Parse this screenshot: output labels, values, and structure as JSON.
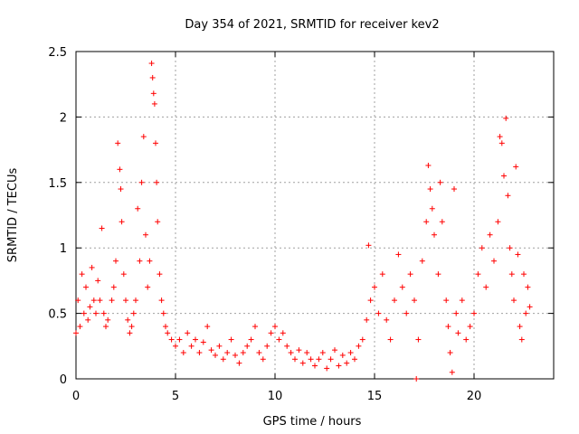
{
  "chart_data": {
    "type": "scatter",
    "title": "Day 354 of 2021, SRMTID for receiver kev2",
    "xlabel": "GPS time / hours",
    "ylabel": "SRMTID / TECUs",
    "xlim": [
      0,
      24
    ],
    "ylim": [
      0,
      2.5
    ],
    "xticks": [
      0,
      5,
      10,
      15,
      20
    ],
    "xtick_labels": [
      "0",
      "5",
      "10",
      "15",
      "20"
    ],
    "yticks": [
      0,
      0.5,
      1,
      1.5,
      2,
      2.5
    ],
    "ytick_labels": [
      "0",
      "0.5",
      "1",
      "1.5",
      "2",
      "2.5"
    ],
    "grid": true,
    "marker": "+",
    "color": "#ff0000",
    "series": [
      {
        "name": "SRMTID",
        "points": [
          [
            0.0,
            0.35
          ],
          [
            0.1,
            0.6
          ],
          [
            0.2,
            0.4
          ],
          [
            0.3,
            0.8
          ],
          [
            0.4,
            0.5
          ],
          [
            0.5,
            0.7
          ],
          [
            0.6,
            0.45
          ],
          [
            0.7,
            0.55
          ],
          [
            0.8,
            0.85
          ],
          [
            0.9,
            0.6
          ],
          [
            1.0,
            0.5
          ],
          [
            1.1,
            0.75
          ],
          [
            1.2,
            0.6
          ],
          [
            1.3,
            1.15
          ],
          [
            1.4,
            0.5
          ],
          [
            1.5,
            0.4
          ],
          [
            1.6,
            0.45
          ],
          [
            1.8,
            0.6
          ],
          [
            1.9,
            0.7
          ],
          [
            2.0,
            0.9
          ],
          [
            2.1,
            1.8
          ],
          [
            2.2,
            1.6
          ],
          [
            2.25,
            1.45
          ],
          [
            2.3,
            1.2
          ],
          [
            2.4,
            0.8
          ],
          [
            2.5,
            0.6
          ],
          [
            2.6,
            0.45
          ],
          [
            2.7,
            0.35
          ],
          [
            2.8,
            0.4
          ],
          [
            2.9,
            0.5
          ],
          [
            3.0,
            0.6
          ],
          [
            3.1,
            1.3
          ],
          [
            3.2,
            0.9
          ],
          [
            3.3,
            1.5
          ],
          [
            3.4,
            1.85
          ],
          [
            3.5,
            1.1
          ],
          [
            3.6,
            0.7
          ],
          [
            3.7,
            0.9
          ],
          [
            3.8,
            2.41
          ],
          [
            3.85,
            2.3
          ],
          [
            3.9,
            2.18
          ],
          [
            3.95,
            2.1
          ],
          [
            4.0,
            1.8
          ],
          [
            4.05,
            1.5
          ],
          [
            4.1,
            1.2
          ],
          [
            4.2,
            0.8
          ],
          [
            4.3,
            0.6
          ],
          [
            4.4,
            0.5
          ],
          [
            4.5,
            0.4
          ],
          [
            4.6,
            0.35
          ],
          [
            4.8,
            0.3
          ],
          [
            5.0,
            0.25
          ],
          [
            5.2,
            0.3
          ],
          [
            5.4,
            0.2
          ],
          [
            5.6,
            0.35
          ],
          [
            5.8,
            0.25
          ],
          [
            6.0,
            0.3
          ],
          [
            6.2,
            0.2
          ],
          [
            6.4,
            0.28
          ],
          [
            6.6,
            0.4
          ],
          [
            6.8,
            0.22
          ],
          [
            7.0,
            0.18
          ],
          [
            7.2,
            0.25
          ],
          [
            7.4,
            0.15
          ],
          [
            7.6,
            0.2
          ],
          [
            7.8,
            0.3
          ],
          [
            8.0,
            0.18
          ],
          [
            8.2,
            0.12
          ],
          [
            8.4,
            0.2
          ],
          [
            8.6,
            0.25
          ],
          [
            8.8,
            0.3
          ],
          [
            9.0,
            0.4
          ],
          [
            9.2,
            0.2
          ],
          [
            9.4,
            0.15
          ],
          [
            9.6,
            0.25
          ],
          [
            9.8,
            0.35
          ],
          [
            10.0,
            0.4
          ],
          [
            10.2,
            0.3
          ],
          [
            10.4,
            0.35
          ],
          [
            10.6,
            0.25
          ],
          [
            10.8,
            0.2
          ],
          [
            11.0,
            0.15
          ],
          [
            11.2,
            0.22
          ],
          [
            11.4,
            0.12
          ],
          [
            11.6,
            0.2
          ],
          [
            11.8,
            0.15
          ],
          [
            12.0,
            0.1
          ],
          [
            12.2,
            0.15
          ],
          [
            12.4,
            0.2
          ],
          [
            12.6,
            0.08
          ],
          [
            12.8,
            0.15
          ],
          [
            13.0,
            0.22
          ],
          [
            13.2,
            0.1
          ],
          [
            13.4,
            0.18
          ],
          [
            13.6,
            0.12
          ],
          [
            13.8,
            0.2
          ],
          [
            14.0,
            0.15
          ],
          [
            14.2,
            0.25
          ],
          [
            14.4,
            0.3
          ],
          [
            14.6,
            0.45
          ],
          [
            14.7,
            1.02
          ],
          [
            14.8,
            0.6
          ],
          [
            15.0,
            0.7
          ],
          [
            15.2,
            0.5
          ],
          [
            15.4,
            0.8
          ],
          [
            15.6,
            0.45
          ],
          [
            15.8,
            0.3
          ],
          [
            16.0,
            0.6
          ],
          [
            16.2,
            0.95
          ],
          [
            16.4,
            0.7
          ],
          [
            16.6,
            0.5
          ],
          [
            16.8,
            0.8
          ],
          [
            17.0,
            0.6
          ],
          [
            17.1,
            0.0
          ],
          [
            17.2,
            0.3
          ],
          [
            17.4,
            0.9
          ],
          [
            17.6,
            1.2
          ],
          [
            17.7,
            1.63
          ],
          [
            17.8,
            1.45
          ],
          [
            17.9,
            1.3
          ],
          [
            18.0,
            1.1
          ],
          [
            18.2,
            0.8
          ],
          [
            18.3,
            1.5
          ],
          [
            18.4,
            1.2
          ],
          [
            18.6,
            0.6
          ],
          [
            18.7,
            0.4
          ],
          [
            18.8,
            0.2
          ],
          [
            18.9,
            0.05
          ],
          [
            19.0,
            1.45
          ],
          [
            19.1,
            0.5
          ],
          [
            19.2,
            0.35
          ],
          [
            19.4,
            0.6
          ],
          [
            19.6,
            0.3
          ],
          [
            19.8,
            0.4
          ],
          [
            20.0,
            0.5
          ],
          [
            20.2,
            0.8
          ],
          [
            20.4,
            1.0
          ],
          [
            20.6,
            0.7
          ],
          [
            20.8,
            1.1
          ],
          [
            21.0,
            0.9
          ],
          [
            21.2,
            1.2
          ],
          [
            21.3,
            1.85
          ],
          [
            21.4,
            1.8
          ],
          [
            21.5,
            1.55
          ],
          [
            21.6,
            1.99
          ],
          [
            21.7,
            1.4
          ],
          [
            21.8,
            1.0
          ],
          [
            21.9,
            0.8
          ],
          [
            22.0,
            0.6
          ],
          [
            22.1,
            1.62
          ],
          [
            22.2,
            0.95
          ],
          [
            22.3,
            0.4
          ],
          [
            22.4,
            0.3
          ],
          [
            22.5,
            0.8
          ],
          [
            22.6,
            0.5
          ],
          [
            22.7,
            0.7
          ],
          [
            22.8,
            0.55
          ]
        ]
      }
    ]
  }
}
